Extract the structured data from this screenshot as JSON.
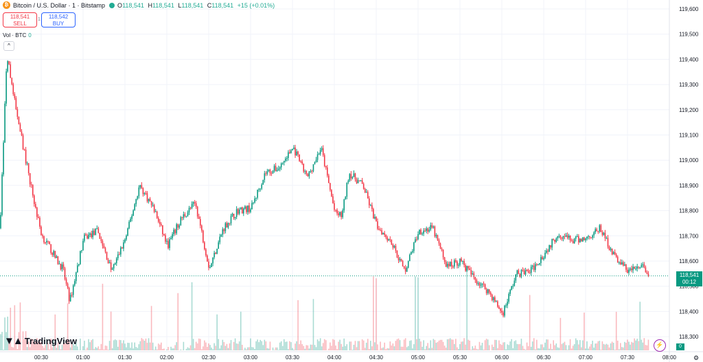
{
  "header": {
    "coin_glyph": "₿",
    "symbol": "Bitcoin / U.S. Dollar · 1 · Bitstamp",
    "ohlc": {
      "o_label": "O",
      "o": "118,541",
      "h_label": "H",
      "h": "118,541",
      "l_label": "L",
      "l": "118,541",
      "c_label": "C",
      "c": "118,541",
      "change": "+15 (+0.01%)"
    }
  },
  "trade": {
    "sell_price": "118,541",
    "sell_label": "SELL",
    "spread": "1",
    "buy_price": "118,542",
    "buy_label": "BUY"
  },
  "volume_legend": {
    "label": "Vol · BTC",
    "value": "0"
  },
  "collapse_icon": "^",
  "logo_text": "TradingView",
  "last_price": {
    "price": "118,541",
    "countdown": "00:12"
  },
  "volume_last": "0",
  "colors": {
    "up": "#089981",
    "down": "#f23645",
    "grid": "#f0f3fa"
  },
  "chart_data": {
    "type": "candlestick",
    "y_ticks": [
      "119,600",
      "119,500",
      "119,400",
      "119,300",
      "119,200",
      "119,100",
      "119,000",
      "118,900",
      "118,800",
      "118,700",
      "118,600",
      "118,500",
      "118,400",
      "118,300"
    ],
    "ylim": [
      118300,
      119600
    ],
    "x_ticks": [
      "00:30",
      "01:00",
      "01:30",
      "02:00",
      "02:30",
      "03:00",
      "03:30",
      "04:00",
      "04:30",
      "05:00",
      "05:30",
      "06:00",
      "06:30",
      "07:00",
      "07:30",
      "08:00"
    ],
    "series": [
      {
        "time": "00:00",
        "close": 118730
      },
      {
        "time": "00:05",
        "close": 119420
      },
      {
        "time": "00:10",
        "close": 119250
      },
      {
        "time": "00:15",
        "close": 119100
      },
      {
        "time": "00:20",
        "close": 118960
      },
      {
        "time": "00:25",
        "close": 118820
      },
      {
        "time": "00:30",
        "close": 118700
      },
      {
        "time": "00:35",
        "close": 118660
      },
      {
        "time": "00:40",
        "close": 118610
      },
      {
        "time": "00:45",
        "close": 118570
      },
      {
        "time": "00:50",
        "close": 118440
      },
      {
        "time": "01:00",
        "close": 118690
      },
      {
        "time": "01:10",
        "close": 118720
      },
      {
        "time": "01:20",
        "close": 118560
      },
      {
        "time": "01:30",
        "close": 118690
      },
      {
        "time": "01:40",
        "close": 118900
      },
      {
        "time": "01:50",
        "close": 118810
      },
      {
        "time": "02:00",
        "close": 118660
      },
      {
        "time": "02:10",
        "close": 118770
      },
      {
        "time": "02:20",
        "close": 118830
      },
      {
        "time": "02:30",
        "close": 118570
      },
      {
        "time": "02:40",
        "close": 118730
      },
      {
        "time": "02:50",
        "close": 118800
      },
      {
        "time": "03:00",
        "close": 118810
      },
      {
        "time": "03:10",
        "close": 118950
      },
      {
        "time": "03:20",
        "close": 118970
      },
      {
        "time": "03:30",
        "close": 119050
      },
      {
        "time": "03:40",
        "close": 118930
      },
      {
        "time": "03:50",
        "close": 119050
      },
      {
        "time": "04:00",
        "close": 118790
      },
      {
        "time": "04:05",
        "close": 118780
      },
      {
        "time": "04:10",
        "close": 118950
      },
      {
        "time": "04:20",
        "close": 118900
      },
      {
        "time": "04:30",
        "close": 118740
      },
      {
        "time": "04:40",
        "close": 118680
      },
      {
        "time": "04:50",
        "close": 118560
      },
      {
        "time": "05:00",
        "close": 118720
      },
      {
        "time": "05:10",
        "close": 118730
      },
      {
        "time": "05:20",
        "close": 118580
      },
      {
        "time": "05:30",
        "close": 118600
      },
      {
        "time": "05:40",
        "close": 118530
      },
      {
        "time": "05:50",
        "close": 118480
      },
      {
        "time": "06:00",
        "close": 118390
      },
      {
        "time": "06:10",
        "close": 118550
      },
      {
        "time": "06:20",
        "close": 118560
      },
      {
        "time": "06:30",
        "close": 118630
      },
      {
        "time": "06:40",
        "close": 118710
      },
      {
        "time": "06:50",
        "close": 118680
      },
      {
        "time": "07:00",
        "close": 118690
      },
      {
        "time": "07:10",
        "close": 118730
      },
      {
        "time": "07:20",
        "close": 118620
      },
      {
        "time": "07:30",
        "close": 118560
      },
      {
        "time": "07:40",
        "close": 118580
      },
      {
        "time": "07:45",
        "close": 118541
      }
    ],
    "grid": true
  }
}
